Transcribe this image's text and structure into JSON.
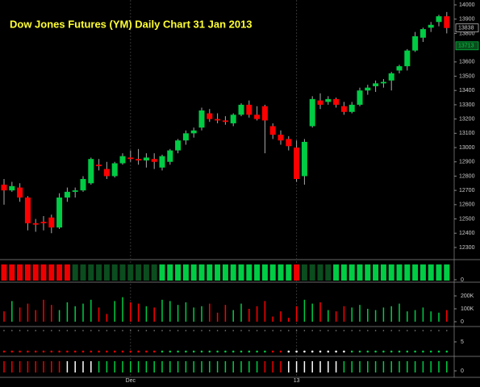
{
  "chart_data": {
    "type": "candlestick",
    "title": "Dow Jones Futures (YM) Daily Chart 31 Jan 2013",
    "categories": [
      null,
      null,
      null,
      null,
      null,
      null,
      null,
      null,
      null,
      null,
      null,
      null,
      null,
      null,
      null,
      null,
      "Dec",
      null,
      null,
      null,
      null,
      null,
      null,
      null,
      null,
      null,
      null,
      null,
      null,
      null,
      null,
      null,
      null,
      null,
      null,
      null,
      null,
      "13",
      null,
      null,
      null,
      null,
      null,
      null,
      null,
      null,
      null,
      null,
      null,
      null,
      null,
      null,
      null,
      null,
      null,
      null,
      null
    ],
    "open": [
      12740,
      12700,
      12720,
      12650,
      12470,
      12480,
      12510,
      12440,
      12650,
      12690,
      12700,
      12750,
      12880,
      12850,
      12800,
      12890,
      12930,
      12920,
      12910,
      12920,
      12860,
      12900,
      12980,
      13050,
      13100,
      13140,
      13240,
      13200,
      13190,
      13170,
      13230,
      13300,
      13230,
      13290,
      13150,
      13090,
      13060,
      13000,
      12800,
      13150,
      13330,
      13320,
      13340,
      13290,
      13250,
      13300,
      13400,
      13430,
      13450,
      13470,
      13540,
      13570,
      13680,
      13770,
      13840,
      13880,
      13920
    ],
    "high": [
      12780,
      12760,
      12750,
      12660,
      12500,
      12520,
      12530,
      12680,
      12720,
      12720,
      12800,
      12930,
      12920,
      12900,
      12900,
      12960,
      12980,
      12990,
      12960,
      12960,
      12950,
      12990,
      13060,
      13120,
      13140,
      13280,
      13270,
      13240,
      13220,
      13240,
      13310,
      13330,
      13290,
      13300,
      13170,
      13120,
      13080,
      13050,
      13060,
      13360,
      13380,
      13360,
      13350,
      13320,
      13320,
      13420,
      13440,
      13470,
      13480,
      13530,
      13580,
      13690,
      13810,
      13840,
      13880,
      13930,
      13950
    ],
    "low": [
      12600,
      12690,
      12620,
      12420,
      12410,
      12420,
      12400,
      12430,
      12620,
      12650,
      12690,
      12740,
      12840,
      12780,
      12790,
      12880,
      12900,
      12880,
      12860,
      12850,
      12840,
      12880,
      12960,
      13020,
      13070,
      13120,
      13180,
      13170,
      13160,
      13150,
      13220,
      13210,
      13190,
      12960,
      13060,
      13020,
      12980,
      12760,
      12740,
      13140,
      13270,
      13300,
      13280,
      13230,
      13240,
      13290,
      13370,
      13390,
      13420,
      13400,
      13520,
      13540,
      13670,
      13740,
      13810,
      13850,
      13800
    ],
    "close": [
      12700,
      12730,
      12650,
      12470,
      12460,
      12470,
      12440,
      12650,
      12690,
      12700,
      12780,
      12920,
      12870,
      12800,
      12890,
      12940,
      12920,
      12910,
      12930,
      12900,
      12940,
      12980,
      13050,
      13100,
      13120,
      13260,
      13200,
      13190,
      13180,
      13230,
      13300,
      13230,
      13200,
      13190,
      13090,
      13050,
      13010,
      12780,
      13040,
      13340,
      13300,
      13340,
      13300,
      13250,
      13300,
      13400,
      13420,
      13450,
      13460,
      13520,
      13570,
      13680,
      13780,
      13830,
      13860,
      13920,
      13838
    ],
    "up_color": "#00cc44",
    "down_color": "#ff0000",
    "ylim": [
      12215,
      14034
    ],
    "yticks": [
      12300,
      12400,
      12500,
      12600,
      12700,
      12800,
      12900,
      13000,
      13100,
      13200,
      13300,
      13400,
      13500,
      13600,
      13800,
      13900,
      14000
    ],
    "last_price": 13838,
    "stop_price": 13713,
    "strip": {
      "yticks": [
        0
      ],
      "colors": [
        "#ee0000",
        "#ee0000",
        "#ee0000",
        "#ee0000",
        "#ee0000",
        "#ee0000",
        "#ee0000",
        "#ee0000",
        "#ee0000",
        "#0b4d1e",
        "#0b4d1e",
        "#0b4d1e",
        "#0b4d1e",
        "#0b4d1e",
        "#0b4d1e",
        "#0b4d1e",
        "#0b4d1e",
        "#0b4d1e",
        "#0b4d1e",
        "#0b4d1e",
        "#00cc44",
        "#00cc44",
        "#00cc44",
        "#00cc44",
        "#00cc44",
        "#00cc44",
        "#00cc44",
        "#00cc44",
        "#00cc44",
        "#00cc44",
        "#00cc44",
        "#00cc44",
        "#00cc44",
        "#00cc44",
        "#00cc44",
        "#00cc44",
        "#00cc44",
        "#ee0000",
        "#0b4d1e",
        "#0b4d1e",
        "#0b4d1e",
        "#0b4d1e",
        "#00cc44",
        "#00cc44",
        "#00cc44",
        "#00cc44",
        "#00cc44",
        "#00cc44",
        "#00cc44",
        "#00cc44",
        "#00cc44",
        "#00cc44",
        "#00cc44",
        "#00cc44",
        "#00cc44",
        "#00cc44",
        "#00cc44"
      ]
    },
    "volume": {
      "ylim": [
        0,
        300000
      ],
      "yticks": [
        {
          "value": 0,
          "label": "0"
        },
        {
          "value": 100000,
          "label": "100K"
        },
        {
          "value": 200000,
          "label": "200K"
        }
      ],
      "values": [
        80000,
        160000,
        110000,
        140000,
        90000,
        170000,
        130000,
        90000,
        150000,
        120000,
        140000,
        170000,
        110000,
        60000,
        160000,
        190000,
        150000,
        140000,
        120000,
        110000,
        170000,
        160000,
        130000,
        150000,
        110000,
        120000,
        140000,
        70000,
        130000,
        90000,
        140000,
        100000,
        120000,
        160000,
        40000,
        80000,
        30000,
        120000,
        170000,
        140000,
        150000,
        90000,
        80000,
        120000,
        110000,
        130000,
        100000,
        90000,
        110000,
        120000,
        140000,
        80000,
        90000,
        110000,
        80000,
        70000,
        90000
      ]
    },
    "dots": {
      "ylim": [
        0,
        10
      ],
      "yticks": [
        5
      ],
      "colors": [
        "#ee0000",
        "#ee0000",
        "#ee0000",
        "#ee0000",
        "#ee0000",
        "#ee0000",
        "#ee0000",
        "#ee0000",
        "#ee0000",
        "#ee0000",
        "#ee0000",
        "#ee0000",
        "#ee0000",
        "#ee0000",
        "#ee0000",
        "#ee0000",
        "#ee0000",
        "#ee0000",
        "#ee0000",
        "#ee0000",
        "#00cc44",
        "#00cc44",
        "#00cc44",
        "#00cc44",
        "#00cc44",
        "#00cc44",
        "#00cc44",
        "#00cc44",
        "#00cc44",
        "#00cc44",
        "#00cc44",
        "#00cc44",
        "#00cc44",
        "#00cc44",
        "#ee0000",
        "#ee0000",
        "#ffffff",
        "#ffffff",
        "#ffffff",
        "#ffffff",
        "#ffffff",
        "#ffffff",
        "#ffffff",
        "#ffffff",
        "#00cc44",
        "#00cc44",
        "#00cc44",
        "#00cc44",
        "#00cc44",
        "#00cc44",
        "#00cc44",
        "#00cc44",
        "#00cc44",
        "#00cc44",
        "#00cc44",
        "#00cc44",
        "#00cc44"
      ]
    },
    "bottom": {
      "ylim": [
        0,
        10
      ],
      "yticks": [
        0
      ],
      "colors": [
        "#ee0000",
        "#ee0000",
        "#ee0000",
        "#ee0000",
        "#ee0000",
        "#ee0000",
        "#ee0000",
        "#ee0000",
        "#ffffff",
        "#ffffff",
        "#ffffff",
        "#ffffff",
        "#00cc44",
        "#00cc44",
        "#00cc44",
        "#00cc44",
        "#00cc44",
        "#00cc44",
        "#00cc44",
        "#00cc44",
        "#00cc44",
        "#00cc44",
        "#00cc44",
        "#00cc44",
        "#00cc44",
        "#00cc44",
        "#00cc44",
        "#00cc44",
        "#00cc44",
        "#00cc44",
        "#00cc44",
        "#00cc44",
        "#00cc44",
        "#ee0000",
        "#ee0000",
        "#ee0000",
        "#ffffff",
        "#ffffff",
        "#ffffff",
        "#ffffff",
        "#ffffff",
        "#ffffff",
        "#ffffff",
        "#00cc44",
        "#00cc44",
        "#00cc44",
        "#00cc44",
        "#00cc44",
        "#00cc44",
        "#00cc44",
        "#00cc44",
        "#00cc44",
        "#00cc44",
        "#00cc44",
        "#00cc44",
        "#00cc44",
        "#00cc44"
      ]
    }
  }
}
